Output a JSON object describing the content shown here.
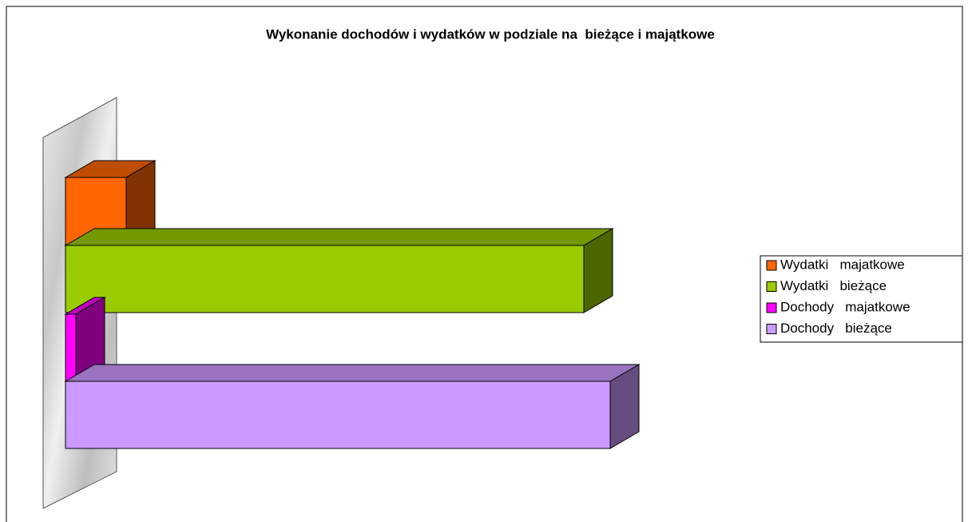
{
  "chart_data": {
    "type": "bar3d-horizontal",
    "title": "Wykonanie dochodów i wydatków w podziale na  bieżące i majątkowe",
    "xlim": [
      0,
      700
    ],
    "legend": "right",
    "series": [
      {
        "name": "Wydatki   majatkowe",
        "color": "#ff6600",
        "values": [
          76
        ]
      },
      {
        "name": "Wydatki   bieżące",
        "color": "#99cc00",
        "values": [
          649
        ]
      },
      {
        "name": "Dochody   majatkowe",
        "color": "#ff00ff",
        "values": [
          13
        ]
      },
      {
        "name": "Dochody   bieżące",
        "color": "#cc99ff",
        "values": [
          682
        ]
      }
    ]
  }
}
